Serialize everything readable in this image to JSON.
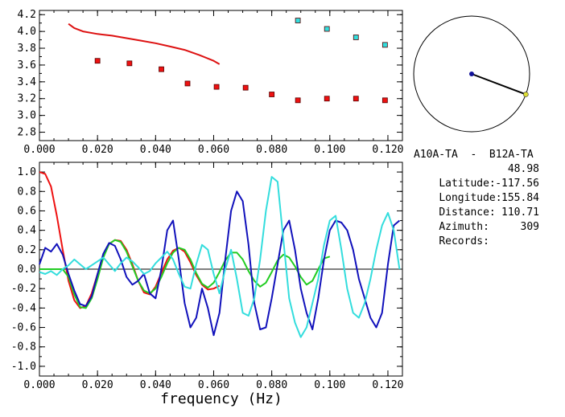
{
  "info": {
    "title": "A10A-TA  -  B12A-TA",
    "rows": [
      {
        "label": "Latitude:",
        "value": "48.98"
      },
      {
        "label": "Longitude:",
        "value": "-117.56"
      },
      {
        "label": "Distance:",
        "value": "155.84"
      },
      {
        "label": "Azimuth:",
        "value": "110.71"
      },
      {
        "label": "Records:",
        "value": "309"
      }
    ]
  },
  "chart_data": [
    {
      "type": "scatter",
      "xlim": [
        0.0,
        0.125
      ],
      "ylim": [
        2.7,
        4.25
      ],
      "xticks": [
        "0.000",
        "0.020",
        "0.040",
        "0.060",
        "0.080",
        "0.100",
        "0.120"
      ],
      "yticks": [
        "2.8",
        "3.0",
        "3.2",
        "3.4",
        "3.6",
        "3.8",
        "4.0",
        "4.2"
      ],
      "series": [
        {
          "kind": "line",
          "color": "#dd1111",
          "x": [
            0.01,
            0.012,
            0.015,
            0.02,
            0.025,
            0.03,
            0.035,
            0.04,
            0.045,
            0.05,
            0.055,
            0.06,
            0.062
          ],
          "y": [
            4.09,
            4.04,
            4.0,
            3.97,
            3.95,
            3.92,
            3.89,
            3.86,
            3.82,
            3.78,
            3.72,
            3.65,
            3.61
          ]
        },
        {
          "kind": "points",
          "color": "#ee1111",
          "x": [
            0.02,
            0.031,
            0.042,
            0.051,
            0.061,
            0.071,
            0.08,
            0.089,
            0.099,
            0.109,
            0.119
          ],
          "y": [
            3.65,
            3.62,
            3.55,
            3.38,
            3.34,
            3.33,
            3.25,
            3.18,
            3.2,
            3.2,
            3.18
          ]
        },
        {
          "kind": "points",
          "color": "#33dddd",
          "x": [
            0.089,
            0.099,
            0.109,
            0.119
          ],
          "y": [
            4.13,
            4.03,
            3.93,
            3.84
          ]
        }
      ]
    },
    {
      "type": "line",
      "xlim": [
        0.0,
        0.125
      ],
      "ylim": [
        -1.1,
        1.1
      ],
      "xticks": [
        "0.000",
        "0.020",
        "0.040",
        "0.060",
        "0.080",
        "0.100",
        "0.120"
      ],
      "yticks": [
        "1.0",
        "0.8",
        "0.6",
        "0.4",
        "0.2",
        "0.0",
        "-0.2",
        "-0.4",
        "-0.6",
        "-0.8",
        "-1.0"
      ],
      "xlabel": "frequency (Hz)",
      "series": [
        {
          "color": "#ee1111",
          "x": [
            0.0,
            0.002,
            0.004,
            0.006,
            0.008,
            0.01,
            0.012,
            0.014,
            0.016,
            0.018,
            0.02,
            0.022,
            0.024,
            0.026,
            0.028,
            0.03,
            0.032,
            0.034,
            0.036,
            0.038,
            0.04,
            0.042,
            0.044,
            0.046,
            0.048,
            0.05,
            0.052,
            0.054,
            0.056,
            0.058,
            0.06,
            0.062
          ],
          "y": [
            1.0,
            0.98,
            0.85,
            0.55,
            0.2,
            -0.12,
            -0.32,
            -0.4,
            -0.38,
            -0.25,
            -0.05,
            0.14,
            0.26,
            0.3,
            0.29,
            0.2,
            0.05,
            -0.12,
            -0.24,
            -0.26,
            -0.18,
            -0.04,
            0.1,
            0.19,
            0.22,
            0.18,
            0.07,
            -0.06,
            -0.16,
            -0.21,
            -0.2,
            -0.17
          ]
        },
        {
          "color": "#22cc22",
          "x": [
            0.0,
            0.004,
            0.008,
            0.01,
            0.012,
            0.014,
            0.016,
            0.018,
            0.02,
            0.022,
            0.024,
            0.026,
            0.028,
            0.03,
            0.032,
            0.034,
            0.036,
            0.038,
            0.04,
            0.042,
            0.044,
            0.046,
            0.048,
            0.05,
            0.052,
            0.054,
            0.056,
            0.058,
            0.06,
            0.062,
            0.064,
            0.066,
            0.068,
            0.07,
            0.072,
            0.074,
            0.076,
            0.078,
            0.08,
            0.082,
            0.084,
            0.086,
            0.088,
            0.09,
            0.092,
            0.094,
            0.096,
            0.098,
            0.1
          ],
          "y": [
            0.0,
            0.0,
            0.0,
            -0.08,
            -0.26,
            -0.39,
            -0.4,
            -0.3,
            -0.1,
            0.12,
            0.26,
            0.3,
            0.28,
            0.18,
            0.03,
            -0.12,
            -0.22,
            -0.25,
            -0.2,
            -0.08,
            0.06,
            0.17,
            0.22,
            0.2,
            0.1,
            -0.04,
            -0.15,
            -0.19,
            -0.14,
            -0.03,
            0.09,
            0.17,
            0.17,
            0.1,
            -0.02,
            -0.12,
            -0.18,
            -0.14,
            -0.03,
            0.09,
            0.15,
            0.12,
            0.03,
            -0.08,
            -0.16,
            -0.12,
            0.0,
            0.11,
            0.13
          ]
        },
        {
          "color": "#1111bb",
          "x": [
            0.0,
            0.002,
            0.004,
            0.006,
            0.008,
            0.01,
            0.012,
            0.014,
            0.016,
            0.018,
            0.02,
            0.022,
            0.024,
            0.026,
            0.028,
            0.03,
            0.032,
            0.034,
            0.036,
            0.038,
            0.04,
            0.042,
            0.044,
            0.046,
            0.048,
            0.05,
            0.052,
            0.054,
            0.056,
            0.058,
            0.06,
            0.062,
            0.064,
            0.066,
            0.068,
            0.07,
            0.072,
            0.074,
            0.076,
            0.078,
            0.08,
            0.082,
            0.084,
            0.086,
            0.088,
            0.09,
            0.092,
            0.094,
            0.096,
            0.098,
            0.1,
            0.102,
            0.104,
            0.106,
            0.108,
            0.11,
            0.112,
            0.114,
            0.116,
            0.118,
            0.12,
            0.122,
            0.124
          ],
          "y": [
            0.05,
            0.22,
            0.18,
            0.26,
            0.15,
            -0.05,
            -0.22,
            -0.36,
            -0.38,
            -0.28,
            -0.05,
            0.16,
            0.27,
            0.24,
            0.1,
            -0.08,
            -0.16,
            -0.12,
            -0.05,
            -0.25,
            -0.3,
            0.0,
            0.4,
            0.5,
            0.1,
            -0.35,
            -0.6,
            -0.5,
            -0.2,
            -0.4,
            -0.68,
            -0.45,
            0.1,
            0.6,
            0.8,
            0.7,
            0.25,
            -0.35,
            -0.62,
            -0.6,
            -0.3,
            0.05,
            0.4,
            0.5,
            0.2,
            -0.2,
            -0.45,
            -0.62,
            -0.3,
            0.1,
            0.4,
            0.5,
            0.48,
            0.4,
            0.2,
            -0.1,
            -0.3,
            -0.5,
            -0.6,
            -0.45,
            0.05,
            0.45,
            0.5
          ]
        },
        {
          "color": "#33dddd",
          "x": [
            0.0,
            0.002,
            0.004,
            0.006,
            0.008,
            0.01,
            0.012,
            0.014,
            0.016,
            0.018,
            0.02,
            0.022,
            0.024,
            0.026,
            0.028,
            0.03,
            0.032,
            0.034,
            0.036,
            0.038,
            0.04,
            0.042,
            0.044,
            0.046,
            0.048,
            0.05,
            0.052,
            0.054,
            0.056,
            0.058,
            0.06,
            0.062,
            0.064,
            0.066,
            0.068,
            0.07,
            0.072,
            0.074,
            0.076,
            0.078,
            0.08,
            0.082,
            0.084,
            0.086,
            0.088,
            0.09,
            0.092,
            0.094,
            0.096,
            0.098,
            0.1,
            0.102,
            0.104,
            0.106,
            0.108,
            0.11,
            0.112,
            0.114,
            0.116,
            0.118,
            0.12,
            0.122,
            0.124
          ],
          "y": [
            -0.03,
            -0.05,
            -0.02,
            -0.06,
            0.0,
            0.04,
            0.1,
            0.05,
            0.0,
            0.04,
            0.08,
            0.12,
            0.05,
            -0.02,
            0.06,
            0.12,
            0.08,
            0.02,
            -0.05,
            -0.02,
            0.06,
            0.12,
            0.18,
            0.1,
            -0.05,
            -0.18,
            -0.2,
            0.05,
            0.25,
            0.2,
            -0.05,
            -0.25,
            0.0,
            0.2,
            -0.1,
            -0.45,
            -0.48,
            -0.3,
            0.1,
            0.6,
            0.95,
            0.9,
            0.3,
            -0.3,
            -0.55,
            -0.7,
            -0.6,
            -0.35,
            -0.1,
            0.25,
            0.5,
            0.55,
            0.2,
            -0.2,
            -0.45,
            -0.5,
            -0.35,
            -0.1,
            0.2,
            0.45,
            0.58,
            0.4,
            0.0
          ]
        }
      ]
    }
  ],
  "map": {
    "center_dot_color": "#111199",
    "end_dot_color": "#dddd33",
    "azimuth_deg": 110.71
  }
}
